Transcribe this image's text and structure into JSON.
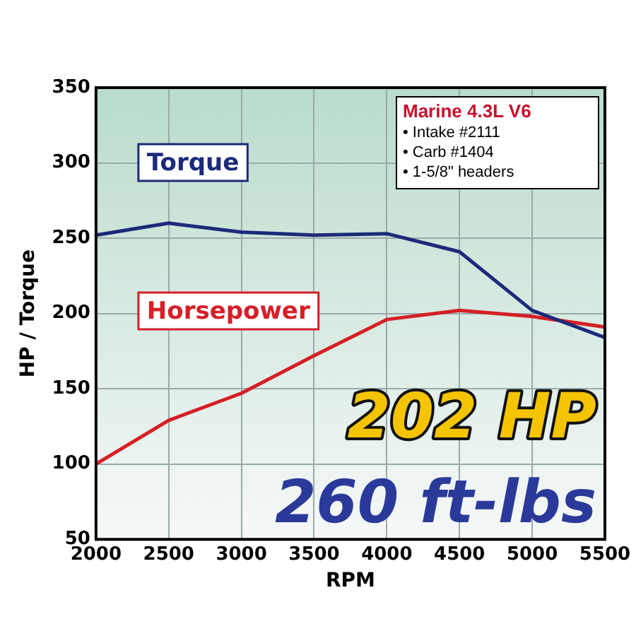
{
  "chart_data": {
    "type": "line",
    "xlabel": "RPM",
    "ylabel": "HP / Torque",
    "x": [
      2000,
      2500,
      3000,
      3500,
      4000,
      4500,
      5000,
      5500
    ],
    "series": [
      {
        "name": "Torque",
        "color": "#1c2a7a",
        "values": [
          252,
          260,
          254,
          252,
          253,
          241,
          202,
          184
        ]
      },
      {
        "name": "Horsepower",
        "color": "#d61f26",
        "values": [
          100,
          129,
          147,
          172,
          196,
          202,
          198,
          191
        ]
      }
    ],
    "xlim": [
      2000,
      5500
    ],
    "xticks": [
      2000,
      2500,
      3000,
      3500,
      4000,
      4500,
      5000,
      5500
    ],
    "ylim": [
      50,
      350
    ],
    "yticks": [
      50,
      100,
      150,
      200,
      250,
      300,
      350
    ],
    "grid": true,
    "legend": false,
    "marker": "none",
    "line_style": "solid",
    "annotations": [
      "Marine 4.3L V6",
      "• Intake #2111",
      "• Carb #1404",
      "• 1-5/8\" headers",
      "202 HP",
      "260 ft-lbs"
    ]
  }
}
